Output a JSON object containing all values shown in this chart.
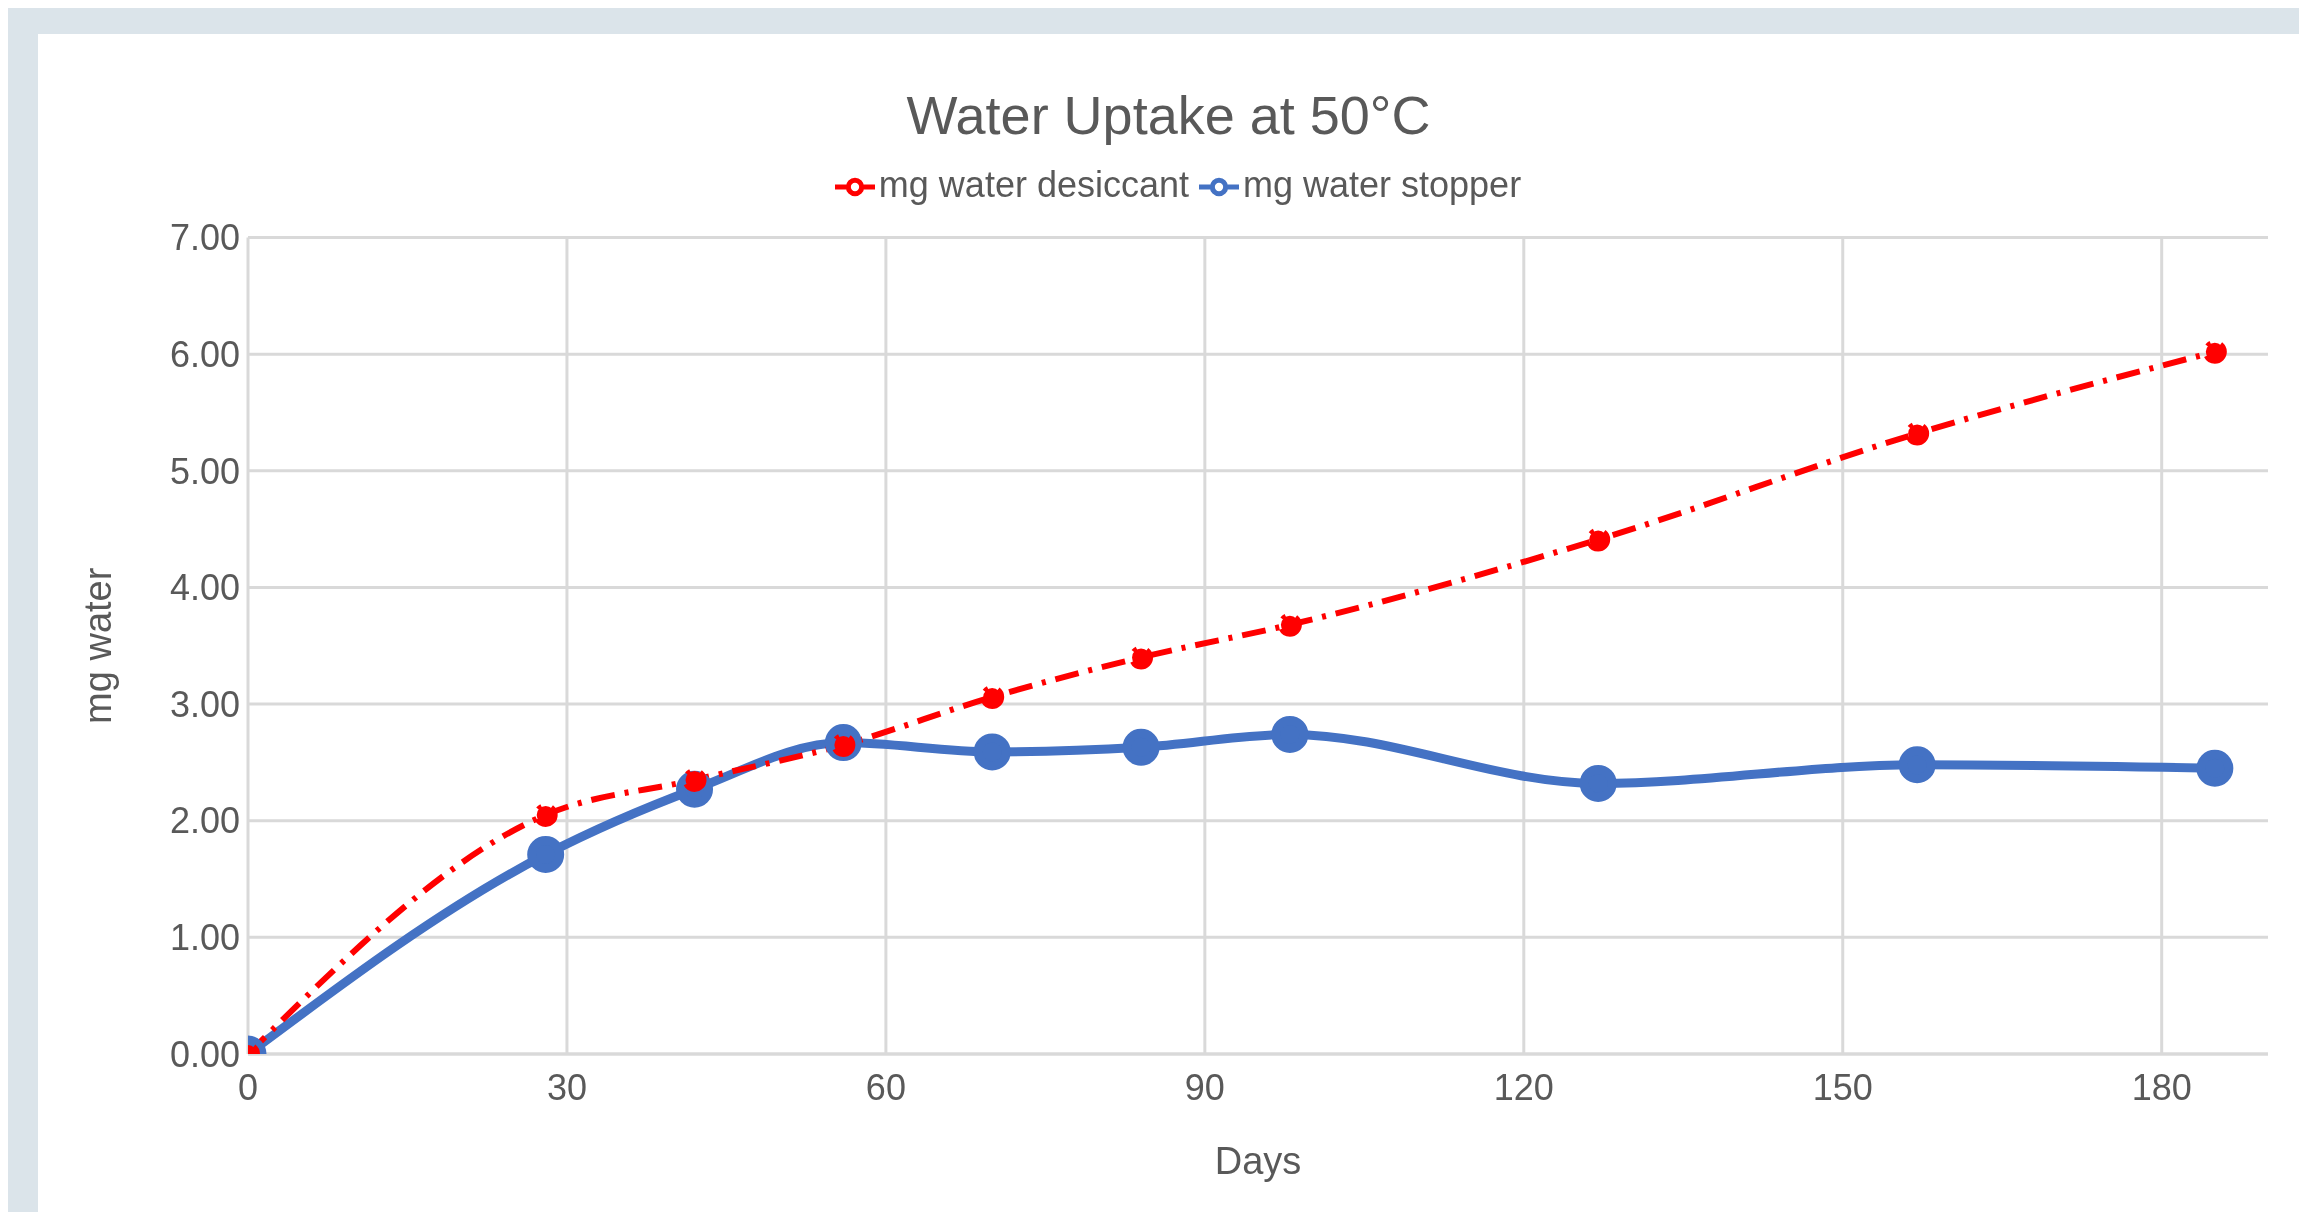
{
  "chart_data": {
    "type": "line",
    "title": "Water Uptake at 50°C",
    "xlabel": "Days",
    "ylabel": "mg water",
    "x": [
      0,
      28,
      42,
      56,
      70,
      84,
      98,
      127,
      157,
      185
    ],
    "series": [
      {
        "name": "mg water desiccant",
        "color": "#ff0000",
        "line_style": "dashed",
        "values": [
          0,
          2.05,
          2.35,
          2.65,
          3.06,
          3.4,
          3.68,
          4.41,
          5.32,
          6.02
        ]
      },
      {
        "name": "mg water stopper",
        "color": "#4472c4",
        "line_style": "solid",
        "values": [
          0,
          1.71,
          2.27,
          2.67,
          2.59,
          2.63,
          2.74,
          2.32,
          2.48,
          2.45
        ]
      }
    ],
    "xlim": [
      0,
      190
    ],
    "xticks": [
      0,
      30,
      60,
      90,
      120,
      150,
      180
    ],
    "ylim": [
      0,
      7
    ],
    "yticks": [
      {
        "value": 0,
        "label": "0.00"
      },
      {
        "value": 1,
        "label": "1.00"
      },
      {
        "value": 2,
        "label": "2.00"
      },
      {
        "value": 3,
        "label": "3.00"
      },
      {
        "value": 4,
        "label": "4.00"
      },
      {
        "value": 5,
        "label": "5.00"
      },
      {
        "value": 6,
        "label": "6.00"
      },
      {
        "value": 7,
        "label": "7.00"
      }
    ],
    "grid": true,
    "legend": "top",
    "marker": "circle"
  }
}
